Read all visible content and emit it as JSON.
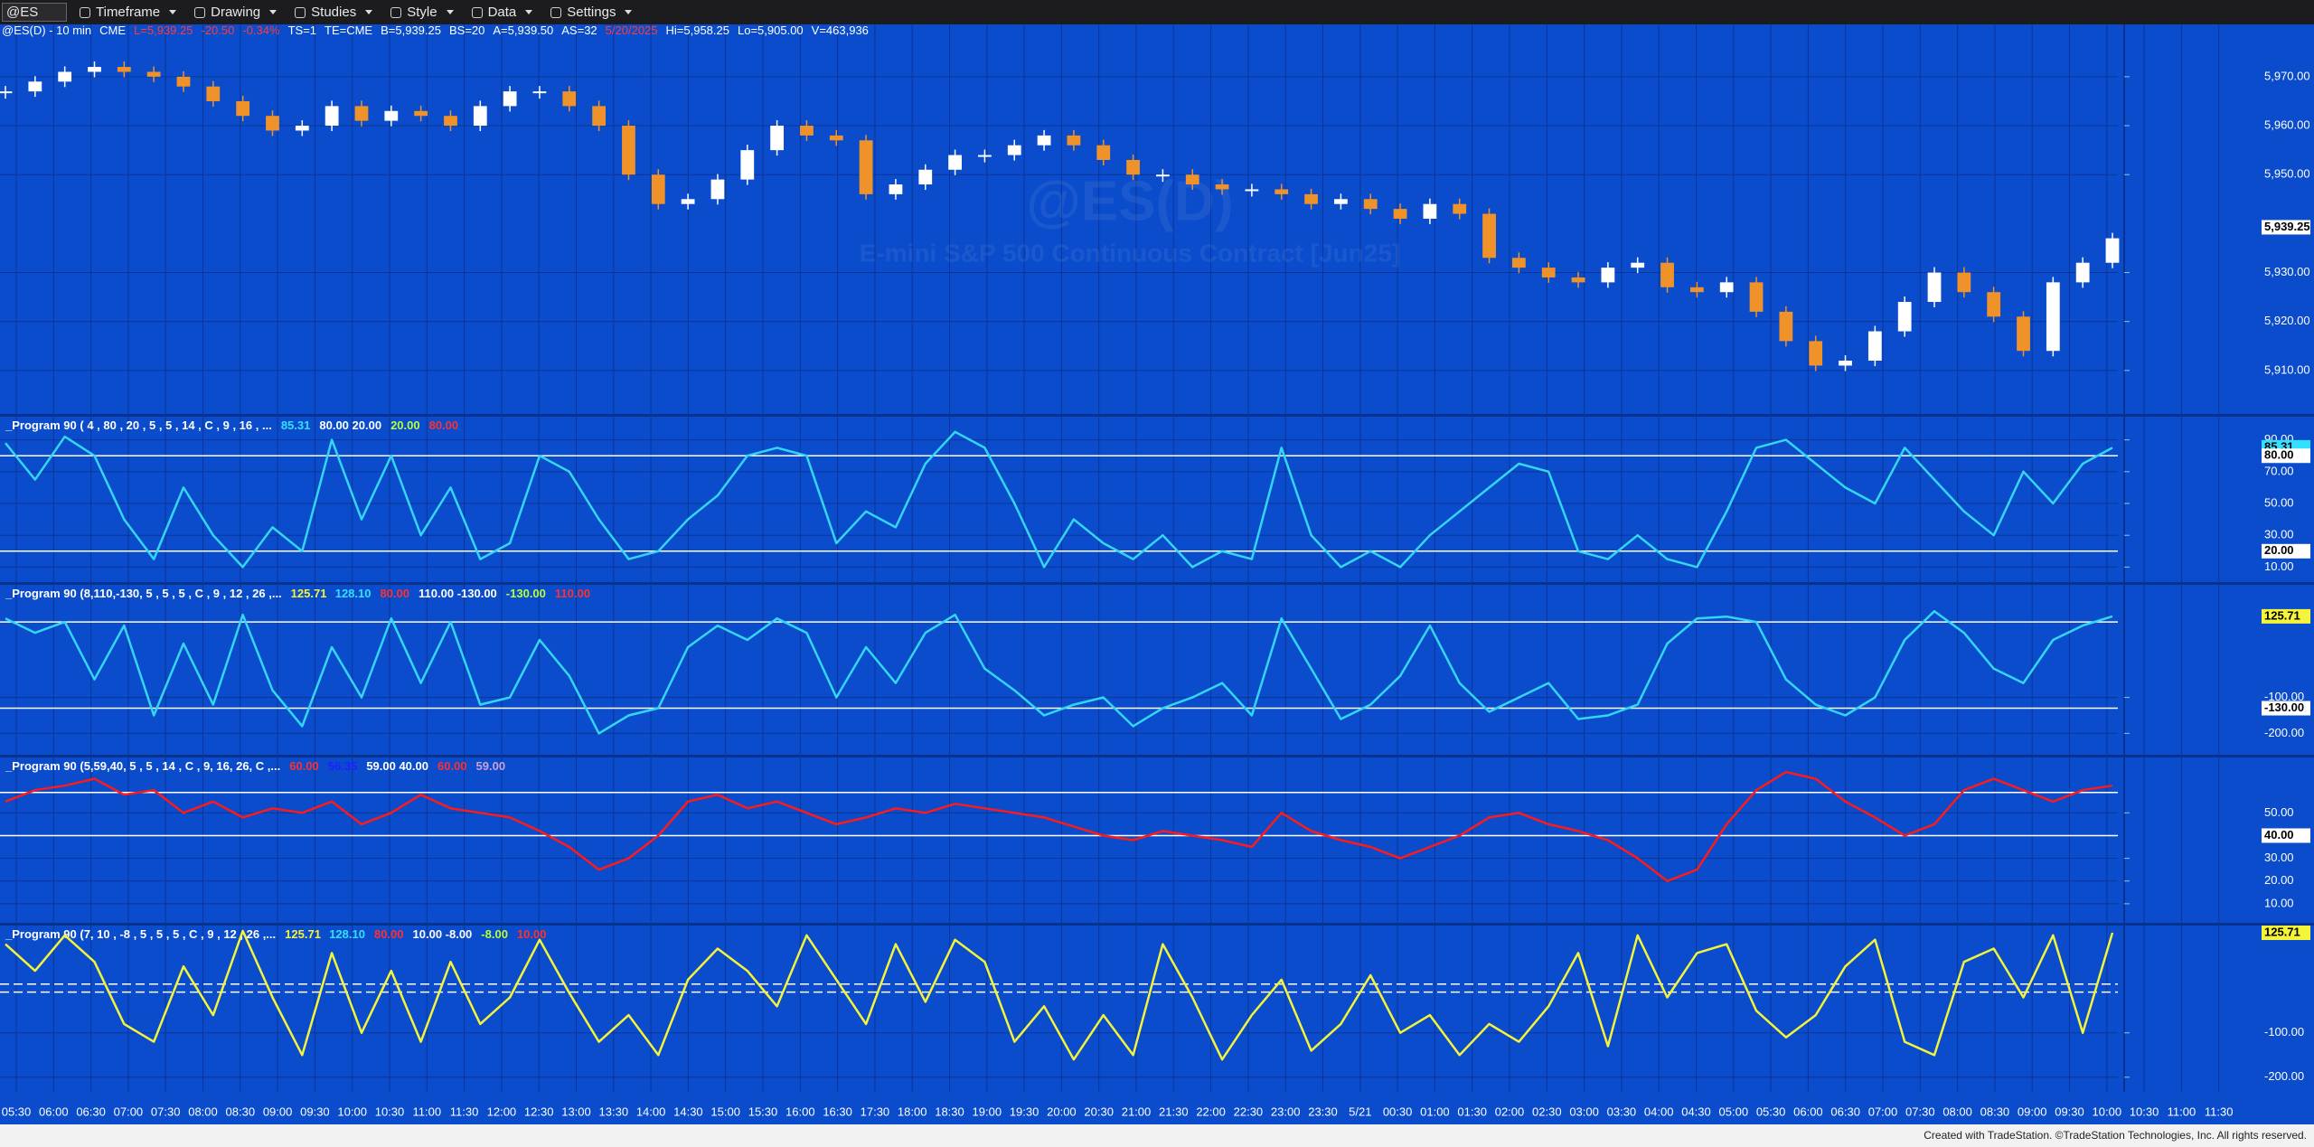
{
  "toolbar": {
    "symbol": "@ES",
    "items": [
      "Timeframe",
      "Drawing",
      "Studies",
      "Style",
      "Data",
      "Settings"
    ]
  },
  "status_line": [
    {
      "text": "@ES(D) - 10 min",
      "color": "#ffffff"
    },
    {
      "text": "CME",
      "color": "#ffffff"
    },
    {
      "text": "L=5,939.25",
      "color": "#ff3b3b"
    },
    {
      "text": "-20.50",
      "color": "#ff3b3b"
    },
    {
      "text": "-0.34%",
      "color": "#ff3b3b"
    },
    {
      "text": "TS=1",
      "color": "#ffffff"
    },
    {
      "text": "TE=CME",
      "color": "#ffffff"
    },
    {
      "text": "B=5,939.25",
      "color": "#ffffff"
    },
    {
      "text": "BS=20",
      "color": "#ffffff"
    },
    {
      "text": "A=5,939.50",
      "color": "#ffffff"
    },
    {
      "text": "AS=32",
      "color": "#ffffff"
    },
    {
      "text": "5/20/2025",
      "color": "#ff3b3b"
    },
    {
      "text": "Hi=5,958.25",
      "color": "#ffffff"
    },
    {
      "text": "Lo=5,905.00",
      "color": "#ffffff"
    },
    {
      "text": "V=463,936",
      "color": "#ffffff"
    }
  ],
  "watermark": {
    "symbol": "@ES(D)",
    "description": "E-mini S&P 500 Continuous Contract [Jun25]"
  },
  "chart_data": [
    {
      "type": "candlestick",
      "up_color": "#ffffff",
      "down_color": "#f0922a",
      "closes": [
        5967,
        5969,
        5971,
        5972,
        5971,
        5970,
        5968,
        5965,
        5962,
        5959,
        5960,
        5964,
        5961,
        5963,
        5962,
        5960,
        5964,
        5967,
        5967,
        5964,
        5960,
        5950,
        5944,
        5945,
        5949,
        5955,
        5960,
        5958,
        5957,
        5946,
        5948,
        5951,
        5954,
        5954,
        5956,
        5958,
        5956,
        5953,
        5950,
        5950,
        5948,
        5947,
        5947,
        5946,
        5944,
        5945,
        5943,
        5941,
        5944,
        5942,
        5933,
        5931,
        5929,
        5928,
        5931,
        5932,
        5927,
        5926,
        5928,
        5922,
        5916,
        5911,
        5912,
        5918,
        5924,
        5930,
        5926,
        5921,
        5914,
        5928,
        5932,
        5937
      ],
      "ylim": [
        5901.3,
        5980.5
      ],
      "yticks": [
        {
          "value": 5970,
          "label": "5,970.00"
        },
        {
          "value": 5960,
          "label": "5,960.00"
        },
        {
          "value": 5950,
          "label": "5,950.00"
        },
        {
          "value": 5930,
          "label": "5,930.00"
        },
        {
          "value": 5920,
          "label": "5,920.00"
        },
        {
          "value": 5910,
          "label": "5,910.00"
        }
      ],
      "markers": [
        {
          "value": 5939.25,
          "label": "5,939.25",
          "bg": "#ffffff"
        }
      ]
    },
    {
      "type": "line",
      "legend": [
        {
          "text": "_Program 90 ( 4 , 80 , 20 , 5 , 5 , 14 , C , 9 , 16 , ...",
          "color": "#ffffff"
        },
        {
          "text": "85.31",
          "color": "#33e0ff"
        },
        {
          "text": "80.00 20.00",
          "color": "#ffffff"
        },
        {
          "text": "20.00",
          "color": "#b8ff3a"
        },
        {
          "text": "80.00",
          "color": "#ff3030"
        }
      ],
      "series": [
        {
          "color": "#33d6f5",
          "values": [
            88,
            65,
            92,
            80,
            40,
            15,
            60,
            30,
            10,
            35,
            20,
            90,
            40,
            80,
            30,
            60,
            15,
            25,
            80,
            70,
            40,
            15,
            20,
            40,
            55,
            80,
            85,
            80,
            25,
            45,
            35,
            75,
            95,
            85,
            50,
            10,
            40,
            25,
            15,
            30,
            10,
            20,
            15,
            85,
            30,
            10,
            20,
            10,
            30,
            45,
            60,
            75,
            70,
            20,
            15,
            30,
            15,
            10,
            45,
            85,
            90,
            75,
            60,
            50,
            85,
            65,
            45,
            30,
            70,
            50,
            75,
            85
          ]
        }
      ],
      "levels": [
        {
          "value": 80,
          "color": "#ffffff"
        },
        {
          "value": 20,
          "color": "#ffffff"
        }
      ],
      "ylim": [
        0,
        104
      ],
      "yticks": [
        {
          "value": 90,
          "label": "90.00"
        },
        {
          "value": 70,
          "label": "70.00"
        },
        {
          "value": 50,
          "label": "50.00"
        },
        {
          "value": 30,
          "label": "30.00"
        },
        {
          "value": 10,
          "label": "10.00"
        }
      ],
      "markers": [
        {
          "value": 85.31,
          "label": "85.31",
          "bg": "#33e0ff"
        },
        {
          "value": 80,
          "label": "80.00",
          "bg": "#ffffff"
        },
        {
          "value": 20,
          "label": "20.00",
          "bg": "#ffffff"
        }
      ]
    },
    {
      "type": "line",
      "legend": [
        {
          "text": "_Program 90 (8,110,-130, 5 , 5 , 5 , C , 9 , 12 , 26 ,...",
          "color": "#ffffff"
        },
        {
          "text": "125.71",
          "color": "#f4f43a"
        },
        {
          "text": "128.10",
          "color": "#33e0ff"
        },
        {
          "text": "80.00",
          "color": "#ff3030"
        },
        {
          "text": "110.00 -130.00",
          "color": "#ffffff"
        },
        {
          "text": "-130.00",
          "color": "#b8ff3a"
        },
        {
          "text": "110.00",
          "color": "#ff3030"
        }
      ],
      "series": [
        {
          "color": "#33d6f5",
          "values": [
            120,
            80,
            110,
            -50,
            100,
            -150,
            50,
            -120,
            130,
            -80,
            -180,
            40,
            -100,
            120,
            -60,
            110,
            -120,
            -100,
            60,
            -40,
            -200,
            -150,
            -130,
            40,
            100,
            60,
            120,
            80,
            -100,
            40,
            -60,
            80,
            130,
            -20,
            -80,
            -150,
            -120,
            -100,
            -180,
            -130,
            -100,
            -60,
            -150,
            120,
            -20,
            -160,
            -120,
            -40,
            100,
            -60,
            -140,
            -100,
            -60,
            -160,
            -150,
            -120,
            50,
            120,
            125,
            110,
            -50,
            -120,
            -150,
            -100,
            60,
            140,
            80,
            -20,
            -60,
            60,
            100,
            125.71
          ]
        }
      ],
      "levels": [
        {
          "value": 110,
          "color": "#ffffff"
        },
        {
          "value": -130,
          "color": "#ffffff"
        }
      ],
      "ylim": [
        -262,
        211
      ],
      "yticks": [
        {
          "value": -100,
          "label": "-100.00"
        },
        {
          "value": -200,
          "label": "-200.00"
        }
      ],
      "markers": [
        {
          "value": 125.71,
          "label": "125.71",
          "bg": "#f4f43a"
        },
        {
          "value": -130,
          "label": "-130.00",
          "bg": "#ffffff"
        }
      ]
    },
    {
      "type": "line",
      "legend": [
        {
          "text": "_Program 90 (5,59,40, 5 , 5 , 14 , C , 9, 16, 26, C ,...",
          "color": "#ffffff"
        },
        {
          "text": "60.00",
          "color": "#ff3030"
        },
        {
          "text": "56.35",
          "color": "#2020ff"
        },
        {
          "text": "59.00 40.00",
          "color": "#ffffff"
        },
        {
          "text": "60.00",
          "color": "#ff3030"
        },
        {
          "text": "59.00",
          "color": "#c9a0e0"
        }
      ],
      "series": [
        {
          "color": "#ff1a1a",
          "values": [
            55,
            60,
            62,
            65,
            58,
            60,
            50,
            55,
            48,
            52,
            50,
            55,
            45,
            50,
            58,
            52,
            50,
            48,
            42,
            35,
            25,
            30,
            40,
            55,
            58,
            52,
            55,
            50,
            45,
            48,
            52,
            50,
            54,
            52,
            50,
            48,
            44,
            40,
            38,
            42,
            40,
            38,
            35,
            50,
            42,
            38,
            35,
            30,
            35,
            40,
            48,
            50,
            45,
            42,
            38,
            30,
            20,
            25,
            45,
            60,
            68,
            65,
            55,
            48,
            40,
            45,
            60,
            65,
            60,
            55,
            60,
            62
          ]
        }
      ],
      "levels": [
        {
          "value": 59,
          "color": "#ffffff"
        },
        {
          "value": 40,
          "color": "#ffffff"
        }
      ],
      "ylim": [
        2,
        74
      ],
      "yticks": [
        {
          "value": 50,
          "label": "50.00"
        },
        {
          "value": 30,
          "label": "30.00"
        },
        {
          "value": 20,
          "label": "20.00"
        },
        {
          "value": 10,
          "label": "10.00"
        }
      ],
      "markers": [
        {
          "value": 40,
          "label": "40.00",
          "bg": "#ffffff"
        }
      ]
    },
    {
      "type": "line",
      "legend": [
        {
          "text": "_Program 90 (7, 10 , -8 , 5 , 5 , 5 , C , 9 , 12 , 26 ,...",
          "color": "#ffffff"
        },
        {
          "text": "125.71",
          "color": "#f4f43a"
        },
        {
          "text": "128.10",
          "color": "#33e0ff"
        },
        {
          "text": "80.00",
          "color": "#ff3030"
        },
        {
          "text": "10.00 -8.00",
          "color": "#ffffff"
        },
        {
          "text": "-8.00",
          "color": "#b8ff3a"
        },
        {
          "text": "10.00",
          "color": "#ff3030"
        }
      ],
      "series": [
        {
          "color": "#f4f43a",
          "values": [
            100,
            40,
            120,
            60,
            -80,
            -120,
            50,
            -60,
            130,
            -20,
            -150,
            80,
            -100,
            40,
            -120,
            60,
            -80,
            -20,
            110,
            -10,
            -120,
            -60,
            -150,
            20,
            90,
            40,
            -40,
            120,
            20,
            -80,
            100,
            -30,
            110,
            60,
            -120,
            -40,
            -160,
            -60,
            -150,
            100,
            -20,
            -160,
            -60,
            20,
            -140,
            -80,
            30,
            -100,
            -60,
            -150,
            -80,
            -120,
            -40,
            80,
            -130,
            120,
            -20,
            80,
            100,
            -50,
            -110,
            -60,
            50,
            110,
            -120,
            -150,
            60,
            90,
            -20,
            120,
            -100,
            125.71
          ]
        }
      ],
      "levels": [
        {
          "value": 10,
          "color": "#ffffff"
        },
        {
          "value": -8,
          "color": "#ffffff"
        }
      ],
      "ylim": [
        -233,
        140
      ],
      "yticks": [
        {
          "value": -100,
          "label": "-100.00"
        },
        {
          "value": -200,
          "label": "-200.00"
        }
      ],
      "markers": [
        {
          "value": 125.71,
          "label": "125.71",
          "bg": "#f4f43a"
        }
      ]
    }
  ],
  "time_axis": {
    "labels": [
      "05:30",
      "06:00",
      "06:30",
      "07:00",
      "07:30",
      "08:00",
      "08:30",
      "09:00",
      "09:30",
      "10:00",
      "10:30",
      "11:00",
      "11:30",
      "12:00",
      "12:30",
      "13:00",
      "13:30",
      "14:00",
      "14:30",
      "15:00",
      "15:30",
      "16:00",
      "16:30",
      "17:30",
      "18:00",
      "18:30",
      "19:00",
      "19:30",
      "20:00",
      "20:30",
      "21:00",
      "21:30",
      "22:00",
      "22:30",
      "23:00",
      "23:30",
      "5/21",
      "00:30",
      "01:00",
      "01:30",
      "02:00",
      "02:30",
      "03:00",
      "03:30",
      "04:00",
      "04:30",
      "05:00",
      "05:30",
      "06:00",
      "06:30",
      "07:00",
      "07:30",
      "08:00",
      "08:30",
      "09:00",
      "09:30",
      "10:00",
      "10:30",
      "11:00",
      "11:30"
    ]
  },
  "footer": "Created with TradeStation. ©TradeStation Technologies, Inc. All rights reserved."
}
